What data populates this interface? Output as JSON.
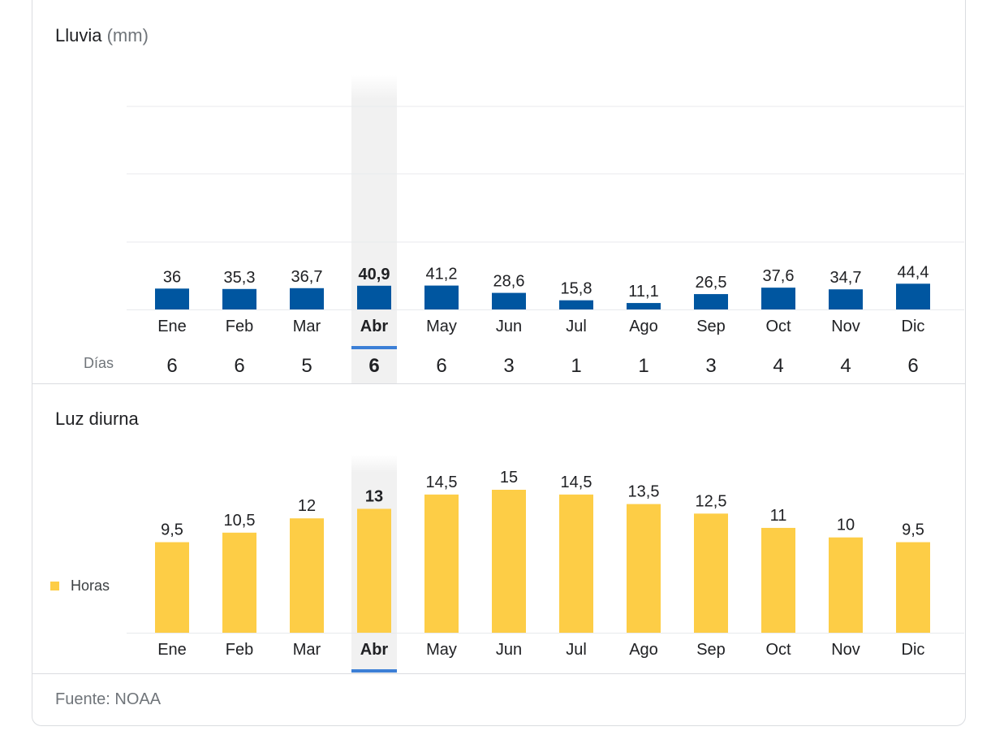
{
  "rain_section": {
    "title": "Lluvia",
    "unit": "(mm)",
    "days_label": "Días"
  },
  "daylight_section": {
    "title": "Luz diurna",
    "legend_label": "Horas"
  },
  "selected_month_index": 3,
  "footer": {
    "source": "Fuente: NOAA"
  },
  "colors": {
    "rain_bar": "#0056a0",
    "daylight_bar": "#fdcd46",
    "selected_indicator": "#3c7fd6",
    "highlight_bg": "#f1f1f1",
    "grid": "#e8eaed"
  },
  "chart_data": [
    {
      "type": "bar",
      "title": "Lluvia (mm)",
      "xlabel": "",
      "ylabel": "mm",
      "grid": true,
      "categories": [
        "Ene",
        "Feb",
        "Mar",
        "Abr",
        "May",
        "Jun",
        "Jul",
        "Ago",
        "Sep",
        "Oct",
        "Nov",
        "Dic"
      ],
      "values": [
        36,
        35.3,
        36.7,
        40.9,
        41.2,
        28.6,
        15.8,
        11.1,
        26.5,
        37.6,
        34.7,
        44.4
      ],
      "value_labels": [
        "36",
        "35,3",
        "36,7",
        "40,9",
        "41,2",
        "28,6",
        "15,8",
        "11,1",
        "26,5",
        "37,6",
        "34,7",
        "44,4"
      ],
      "ylim": [
        0,
        300
      ],
      "secondary_row": {
        "label": "Días",
        "values": [
          "6",
          "6",
          "5",
          "6",
          "6",
          "3",
          "1",
          "1",
          "3",
          "4",
          "4",
          "6"
        ]
      }
    },
    {
      "type": "bar",
      "title": "Luz diurna",
      "xlabel": "",
      "ylabel": "Horas",
      "grid": false,
      "legend": {
        "entries": [
          "Horas"
        ],
        "placement": "left"
      },
      "categories": [
        "Ene",
        "Feb",
        "Mar",
        "Abr",
        "May",
        "Jun",
        "Jul",
        "Ago",
        "Sep",
        "Oct",
        "Nov",
        "Dic"
      ],
      "values": [
        9.5,
        10.5,
        12,
        13,
        14.5,
        15,
        14.5,
        13.5,
        12.5,
        11,
        10,
        9.5
      ],
      "value_labels": [
        "9,5",
        "10,5",
        "12",
        "13",
        "14,5",
        "15",
        "14,5",
        "13,5",
        "12,5",
        "11",
        "10",
        "9,5"
      ],
      "ylim": [
        0,
        15
      ]
    }
  ]
}
